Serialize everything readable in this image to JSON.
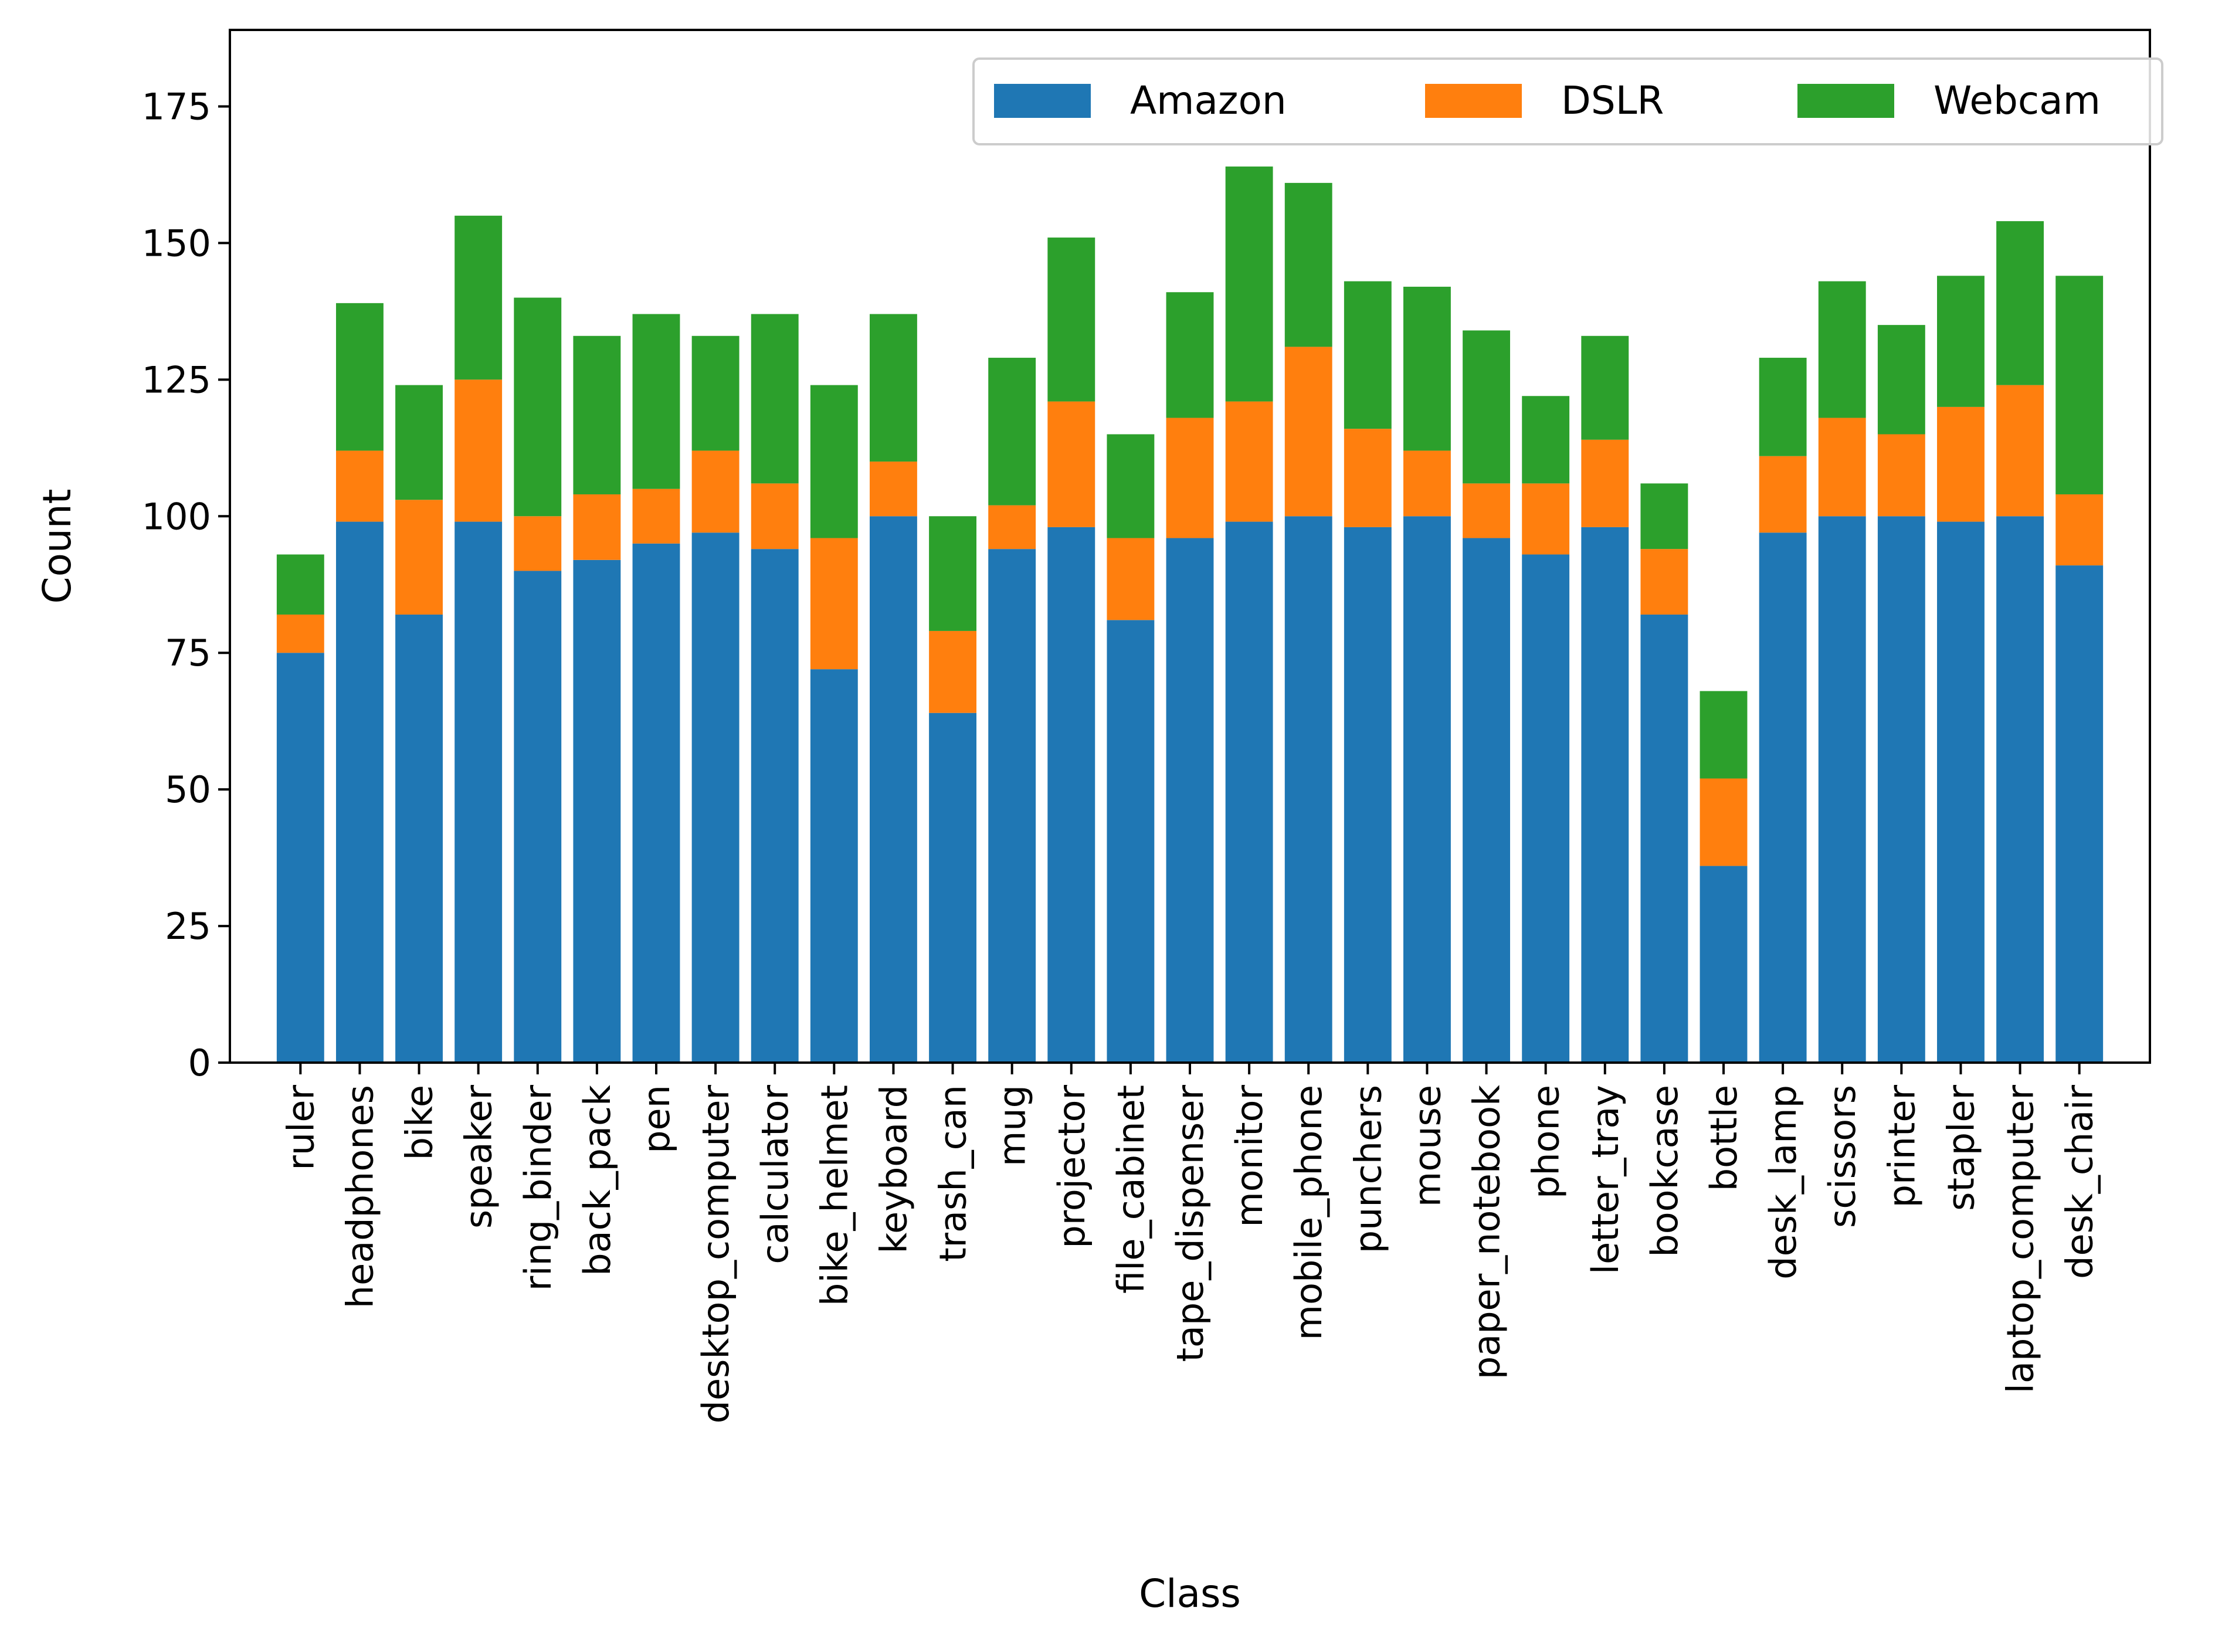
{
  "chart_data": {
    "type": "bar",
    "stacked": true,
    "xlabel": "Class",
    "ylabel": "Count",
    "ylim": [
      0,
      189
    ],
    "yticks": [
      0,
      25,
      50,
      75,
      100,
      125,
      150,
      175
    ],
    "grid": false,
    "legend_position": "top-right",
    "categories": [
      "ruler",
      "headphones",
      "bike",
      "speaker",
      "ring_binder",
      "back_pack",
      "pen",
      "desktop_computer",
      "calculator",
      "bike_helmet",
      "keyboard",
      "trash_can",
      "mug",
      "projector",
      "file_cabinet",
      "tape_dispenser",
      "monitor",
      "mobile_phone",
      "punchers",
      "mouse",
      "paper_notebook",
      "phone",
      "letter_tray",
      "bookcase",
      "bottle",
      "desk_lamp",
      "scissors",
      "printer",
      "stapler",
      "laptop_computer",
      "desk_chair"
    ],
    "series": [
      {
        "name": "Amazon",
        "color": "#1f77b4",
        "values": [
          75,
          99,
          82,
          99,
          90,
          92,
          95,
          97,
          94,
          72,
          100,
          64,
          94,
          98,
          81,
          96,
          99,
          100,
          98,
          100,
          96,
          93,
          98,
          82,
          36,
          97,
          100,
          100,
          99,
          100,
          91
        ]
      },
      {
        "name": "DSLR",
        "color": "#ff7f0e",
        "values": [
          7,
          13,
          21,
          26,
          10,
          12,
          10,
          15,
          12,
          24,
          10,
          15,
          8,
          23,
          15,
          22,
          22,
          31,
          18,
          12,
          10,
          13,
          16,
          12,
          16,
          14,
          18,
          15,
          21,
          24,
          13
        ]
      },
      {
        "name": "Webcam",
        "color": "#2ca02c",
        "values": [
          11,
          27,
          21,
          30,
          40,
          29,
          32,
          21,
          31,
          28,
          27,
          21,
          27,
          30,
          19,
          23,
          43,
          30,
          27,
          30,
          28,
          16,
          19,
          12,
          16,
          18,
          25,
          20,
          24,
          30,
          40
        ]
      }
    ]
  }
}
